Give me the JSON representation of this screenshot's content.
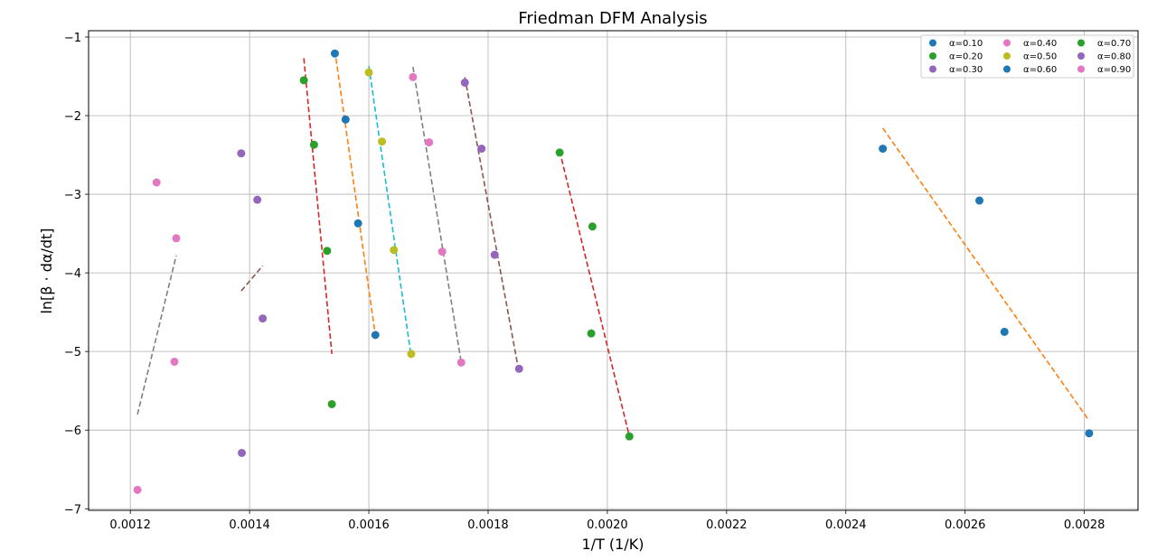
{
  "chart_data": {
    "type": "scatter",
    "title": "Friedman DFM Analysis",
    "xlabel": "1/T (1/K)",
    "ylabel": "ln[β · dα/dt]",
    "xlim": [
      0.00113,
      0.00289
    ],
    "ylim": [
      -7.02,
      -0.92
    ],
    "xticks": [
      0.0012,
      0.0014,
      0.0016,
      0.0018,
      0.002,
      0.0022,
      0.0024,
      0.0026,
      0.0028
    ],
    "xtick_labels": [
      "0.0012",
      "0.0014",
      "0.0016",
      "0.0018",
      "0.0020",
      "0.0022",
      "0.0024",
      "0.0026",
      "0.0028"
    ],
    "yticks": [
      -1,
      -2,
      -3,
      -4,
      -5,
      -6,
      -7
    ],
    "ytick_labels": [
      "−1",
      "−2",
      "−3",
      "−4",
      "−5",
      "−6",
      "−7"
    ],
    "grid": true,
    "legend_position": "top-right",
    "legend_columns": 3,
    "series": [
      {
        "name": "α=0.10",
        "color": "#1f77b4",
        "points": [
          [
            0.002462,
            -2.42
          ],
          [
            0.002624,
            -3.08
          ],
          [
            0.002666,
            -4.75
          ],
          [
            0.002808,
            -6.04
          ]
        ]
      },
      {
        "name": "α=0.20",
        "color": "#2ca02c",
        "points": [
          [
            0.001491,
            -1.55
          ],
          [
            0.001508,
            -2.37
          ],
          [
            0.00153,
            -3.72
          ],
          [
            0.001538,
            -5.67
          ]
        ]
      },
      {
        "name": "α=0.30",
        "color": "#9467bd",
        "points": [
          [
            0.001386,
            -2.48
          ],
          [
            0.001413,
            -3.07
          ],
          [
            0.001422,
            -4.58
          ],
          [
            0.001387,
            -6.29
          ]
        ]
      },
      {
        "name": "α=0.40",
        "color": "#e377c2",
        "points": [
          [
            0.001244,
            -2.85
          ],
          [
            0.001277,
            -3.56
          ],
          [
            0.001274,
            -5.13
          ],
          [
            0.001212,
            -6.76
          ]
        ]
      },
      {
        "name": "α=0.50",
        "color": "#bcbd22",
        "points": [
          [
            0.0016,
            -1.45
          ],
          [
            0.001622,
            -2.33
          ],
          [
            0.001642,
            -3.71
          ],
          [
            0.001671,
            -5.03
          ]
        ]
      },
      {
        "name": "α=0.60",
        "color": "#1f77b4",
        "points": [
          [
            0.001543,
            -1.21
          ],
          [
            0.001561,
            -2.05
          ],
          [
            0.001582,
            -3.37
          ],
          [
            0.001611,
            -4.79
          ]
        ]
      },
      {
        "name": "α=0.70",
        "color": "#2ca02c",
        "points": [
          [
            0.00192,
            -2.47
          ],
          [
            0.001975,
            -3.41
          ],
          [
            0.001973,
            -4.77
          ],
          [
            0.002037,
            -6.08
          ]
        ]
      },
      {
        "name": "α=0.80",
        "color": "#9467bd",
        "points": [
          [
            0.001761,
            -1.58
          ],
          [
            0.001789,
            -2.42
          ],
          [
            0.001811,
            -3.77
          ],
          [
            0.001852,
            -5.22
          ]
        ]
      },
      {
        "name": "α=0.90",
        "color": "#e377c2",
        "points": [
          [
            0.001674,
            -1.51
          ],
          [
            0.001701,
            -2.34
          ],
          [
            0.001723,
            -3.73
          ],
          [
            0.001755,
            -5.14
          ]
        ]
      }
    ],
    "fit_lines": [
      {
        "color": "#7f7f7f",
        "points": [
          [
            0.001212,
            -5.8
          ],
          [
            0.001277,
            -3.78
          ]
        ]
      },
      {
        "color": "#8c564b",
        "points": [
          [
            0.001386,
            -4.23
          ],
          [
            0.001422,
            -3.91
          ]
        ]
      },
      {
        "color": "#d62728",
        "points": [
          [
            0.001491,
            -1.27
          ],
          [
            0.001538,
            -5.03
          ]
        ]
      },
      {
        "color": "#ff7f0e",
        "points": [
          [
            0.001543,
            -1.17
          ],
          [
            0.001611,
            -4.8
          ]
        ]
      },
      {
        "color": "#17becf",
        "points": [
          [
            0.0016,
            -1.37
          ],
          [
            0.001671,
            -5.06
          ]
        ]
      },
      {
        "color": "#7f7f7f",
        "points": [
          [
            0.001674,
            -1.38
          ],
          [
            0.001755,
            -5.14
          ]
        ]
      },
      {
        "color": "#8c564b",
        "points": [
          [
            0.001761,
            -1.51
          ],
          [
            0.001852,
            -5.27
          ]
        ]
      },
      {
        "color": "#d62728",
        "points": [
          [
            0.00192,
            -2.45
          ],
          [
            0.002037,
            -6.08
          ]
        ]
      },
      {
        "color": "#ff7f0e",
        "points": [
          [
            0.002462,
            -2.16
          ],
          [
            0.002808,
            -5.88
          ]
        ]
      }
    ]
  }
}
